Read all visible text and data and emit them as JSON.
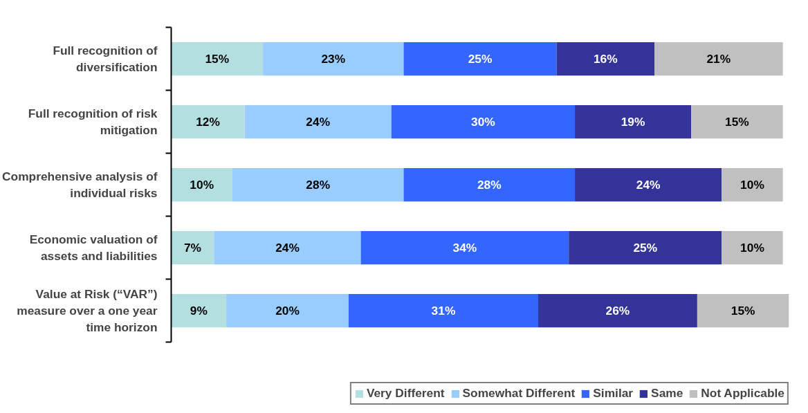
{
  "chart_data": {
    "type": "bar",
    "orientation": "horizontal",
    "stacked": true,
    "legend": "bottom right",
    "grid": false,
    "categories": [
      "Full recognition of diversification",
      "Full recognition of risk mitigation",
      "Comprehensive analysis of individual risks",
      "Economic valuation of assets and liabilities",
      "Value at Risk (“VAR”) measure over a one year time horizon"
    ],
    "series": [
      {
        "name": "Very Different",
        "color": "#b4dfe0",
        "values": [
          15,
          12,
          10,
          7,
          9
        ],
        "value_labels": [
          "15%",
          "12%",
          "10%",
          "7%",
          "9%"
        ]
      },
      {
        "name": "Somewhat Different",
        "color": "#99ccff",
        "values": [
          23,
          24,
          28,
          24,
          20
        ],
        "value_labels": [
          "23%",
          "24%",
          "28%",
          "24%",
          "20%"
        ]
      },
      {
        "name": "Similar",
        "color": "#3366ff",
        "values": [
          25,
          30,
          28,
          34,
          31
        ],
        "value_labels": [
          "25%",
          "30%",
          "28%",
          "34%",
          "31%"
        ]
      },
      {
        "name": "Same",
        "color": "#333399",
        "values": [
          16,
          19,
          24,
          25,
          26
        ],
        "value_labels": [
          "16%",
          "19%",
          "24%",
          "25%",
          "26%"
        ]
      },
      {
        "name": "Not Applicable",
        "color": "#c0c0c0",
        "values": [
          21,
          15,
          10,
          10,
          15
        ],
        "value_labels": [
          "21%",
          "15%",
          "10%",
          "10%",
          "15%"
        ]
      }
    ]
  }
}
